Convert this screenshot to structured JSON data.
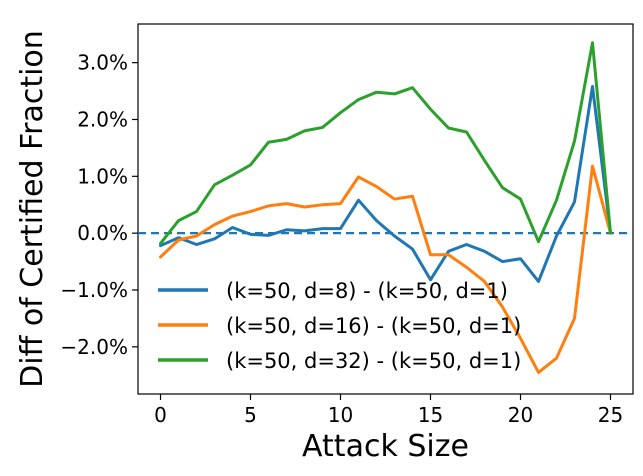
{
  "chart_data": {
    "type": "line",
    "xlabel": "Attack Size",
    "ylabel": "Diff of Certified Fraction",
    "xlim": [
      -1.25,
      26.25
    ],
    "ylim": [
      -2.83,
      3.68
    ],
    "x_ticks": [
      0,
      5,
      10,
      15,
      20,
      25
    ],
    "y_ticks": [
      -2.0,
      -1.0,
      0.0,
      1.0,
      2.0,
      3.0
    ],
    "y_tick_labels": [
      "−2.0%",
      "−1.0%",
      "0.0%",
      "1.0%",
      "2.0%",
      "3.0%"
    ],
    "reference_line": {
      "y": 0.0,
      "style": "dashed",
      "color": "#1f77b4"
    },
    "legend_placement": "lower-left",
    "x": [
      0,
      1,
      2,
      3,
      4,
      5,
      6,
      7,
      8,
      9,
      10,
      11,
      12,
      13,
      14,
      15,
      16,
      17,
      18,
      19,
      20,
      21,
      22,
      23,
      24,
      25
    ],
    "series": [
      {
        "name": "(k=50, d=8) - (k=50, d=1)",
        "color": "#1f77b4",
        "values": [
          -0.22,
          -0.08,
          -0.2,
          -0.1,
          0.1,
          -0.02,
          -0.04,
          0.06,
          0.04,
          0.08,
          0.08,
          0.58,
          0.22,
          -0.05,
          -0.28,
          -0.82,
          -0.32,
          -0.2,
          -0.32,
          -0.5,
          -0.45,
          -0.85,
          -0.05,
          0.55,
          2.58,
          0.0
        ]
      },
      {
        "name": "(k=50, d=16) - (k=50, d=1)",
        "color": "#ff7f0e",
        "values": [
          -0.42,
          -0.12,
          -0.05,
          0.15,
          0.3,
          0.38,
          0.48,
          0.52,
          0.46,
          0.5,
          0.52,
          0.99,
          0.82,
          0.6,
          0.65,
          -0.38,
          -0.38,
          -0.6,
          -0.85,
          -1.3,
          -1.85,
          -2.45,
          -2.2,
          -1.5,
          1.18,
          0.0
        ]
      },
      {
        "name": "(k=50, d=32) - (k=50, d=1)",
        "color": "#2ca02c",
        "values": [
          -0.18,
          0.22,
          0.38,
          0.85,
          1.02,
          1.2,
          1.6,
          1.65,
          1.8,
          1.86,
          2.12,
          2.35,
          2.48,
          2.45,
          2.56,
          2.18,
          1.85,
          1.78,
          1.28,
          0.8,
          0.6,
          -0.15,
          0.58,
          1.62,
          3.35,
          0.0
        ]
      }
    ]
  }
}
